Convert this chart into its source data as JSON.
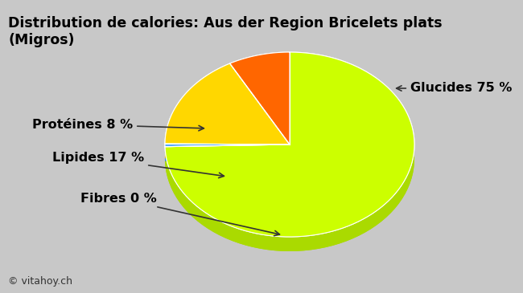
{
  "title": "Distribution de calories: Aus der Region Bricelets plats\n(Migros)",
  "slices": [
    {
      "label": "Glucides 75 %",
      "value": 75,
      "color": "#CCFF00",
      "shadow_color": "#AADA00"
    },
    {
      "label": "Fibres 0 %",
      "value": 0.5,
      "color": "#55AAFF",
      "shadow_color": "#3388DD"
    },
    {
      "label": "Lipides 17 %",
      "value": 17,
      "color": "#FFD700",
      "shadow_color": "#DDBB00"
    },
    {
      "label": "Protéines 8 %",
      "value": 8,
      "color": "#FF6600",
      "shadow_color": "#DD4400"
    }
  ],
  "background_color": "#C8C8C8",
  "title_fontsize": 12.5,
  "annotation_fontsize": 11.5,
  "watermark": "© vitahoy.ch",
  "watermark_fontsize": 9
}
